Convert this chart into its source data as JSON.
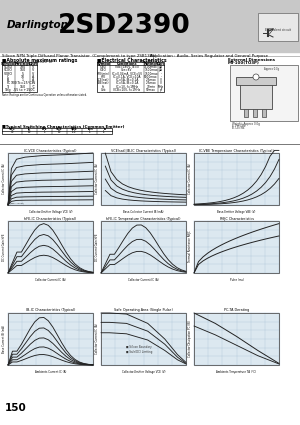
{
  "title_brand": "Darlington",
  "title_part": "2SD2390",
  "subtitle": "Silicon NPN Triple Diffused Planar Transistor  (Complement to type 2SB1386)",
  "application": "Application : Audio, Series Regulator and General Purpose",
  "ext_dim": "External Dimensions  MT-100(TO3P)",
  "page_number": "150",
  "header_bg": "#c8c8c8",
  "chart_bg": "#dce8f0",
  "chart_grid": "#a8c0d8",
  "chart_border": "#555555",
  "line_color": "#222222",
  "table_line": "#000000",
  "text_dark": "#000000",
  "white": "#ffffff"
}
